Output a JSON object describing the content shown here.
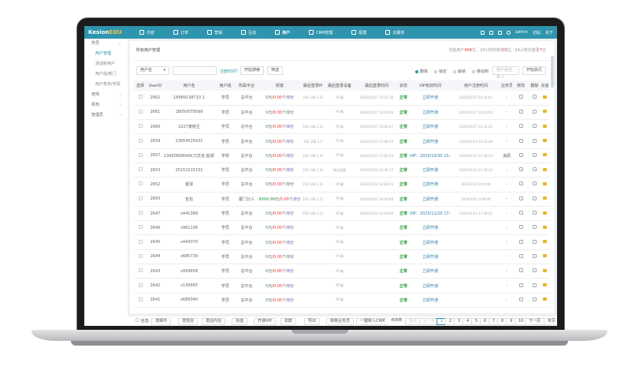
{
  "app": {
    "logo_a": "Kesion",
    "logo_b": "EDU",
    "user": "admin",
    "links": [
      "切站",
      "关于"
    ]
  },
  "nav": [
    {
      "label": "内容"
    },
    {
      "label": "订单"
    },
    {
      "label": "营销"
    },
    {
      "label": "互动"
    },
    {
      "label": "用户",
      "active": true
    },
    {
      "label": "CRM管理"
    },
    {
      "label": "配置"
    },
    {
      "label": "云服务"
    }
  ],
  "sidebar": {
    "groups": [
      {
        "label": "学员",
        "open": true,
        "items": [
          "用户管理",
          "添加新用户",
          "用户组/部门",
          "用户表单/字段"
        ]
      },
      {
        "label": "老师"
      },
      {
        "label": "机构"
      },
      {
        "label": "管理员"
      }
    ]
  },
  "page": {
    "title": "所有用户管理",
    "stats_a": "当前用户",
    "stats_total": "408",
    "stats_b": "位，24小时内新增",
    "stats_new": "0",
    "stats_c": "位，24小时内登录",
    "stats_login": "7",
    "stats_d": "位"
  },
  "filter": {
    "field": "用户名",
    "search_value": "",
    "reg_time": "注册时间？",
    "search": "开始搜索",
    "screen": "筛选",
    "actions": [
      "删除",
      "锁定",
      "解锁",
      "移动到"
    ],
    "selected_action": "删除",
    "group_select": "用户组选择",
    "execute": "开始执行"
  },
  "table": {
    "headers": [
      "选择",
      "UserID",
      "用户名",
      "用户组",
      "所属平台",
      "财富",
      "最后登录IP",
      "最后登录设备",
      "最后登录时间",
      "状态",
      "VIP有效时间",
      "用户注册时间",
      "业务员",
      "修改",
      "删除",
      "充值"
    ],
    "rows": [
      [
        "2662",
        "18989138710 1",
        "学员",
        "总平台",
        "0",
        "0.00",
        "0",
        "192.168.1.235",
        "PC端",
        "2020/10/27 10:41:35",
        "正常",
        "立即开通",
        "2020/10/27 10:41:01",
        "-"
      ],
      [
        "2661",
        "18050078599",
        "学员",
        "总平台",
        "0",
        "0.00",
        "0",
        "",
        "PC端",
        "2020/10/27 10:26:00",
        "正常",
        "立即开通",
        "2020/10/27 10:26:00",
        "-"
      ],
      [
        "2660",
        "1027黄晓生",
        "学员",
        "总平台",
        "0",
        "0.00",
        "0",
        "192.168.1.119",
        "PC端",
        "2020/10/27 10:44:27",
        "正常",
        "立即开通",
        "2020/10/27 10:12:51",
        "-"
      ],
      [
        "2659",
        "13654525631",
        "学员",
        "总平台",
        "0",
        "0.00",
        "0",
        "192.168.1.2",
        "PC端",
        "2020/10/24 17:06:35",
        "正常",
        "立即开通",
        "2020/10/24 16:22:49",
        "-"
      ],
      [
        "2657",
        "13400608049(江苏省,盐城市)",
        "学校",
        "总平台",
        "0",
        "0.00",
        "0",
        "192.168.1.196",
        "PC端",
        "2020/10/23 17:05:34",
        "正常",
        "VIP：2020/10/30 15:46:23",
        "2020/10/23 15:46:23",
        "海源"
      ],
      [
        "2653",
        "15151515151",
        "学员",
        "总平台",
        "0",
        "0.00",
        "0",
        "192.168.1.196",
        "移动设备",
        "2020/10/24 10:49:17",
        "正常",
        "立即开通",
        "2020/10/23 15:30:33",
        "-"
      ],
      [
        "2652",
        "金球",
        "学员",
        "总平台",
        "0",
        "0.00",
        "0",
        "192.168.1.196",
        "PC端",
        "2020/10/22 16:08:54",
        "正常",
        "立即开通",
        "2019/10/1 0:00:00",
        "-"
      ],
      [
        "2650",
        "包包",
        "学员",
        "厦门分三",
        "9999.99",
        "0.00",
        "0",
        "192.168.1.119",
        "PC端",
        "2020/10/22 16:20:09",
        "正常",
        "立即开通",
        "2019/10/1 0:00:00",
        "-"
      ],
      [
        "2647",
        "v441389",
        "学员",
        "总平台",
        "0",
        "0.00",
        "0",
        "192.168.1.119",
        "PC端",
        "2020/10/24 10:09:00",
        "正常",
        "VIP：2020/11/20 17:48:41",
        "2020/10/21 17:48:41",
        "-"
      ],
      [
        "2646",
        "v961106",
        "学员",
        "总平台",
        "0",
        "0.00",
        "0",
        "",
        "PC端",
        "",
        "正常",
        "立即开通",
        "",
        "-"
      ],
      [
        "2645",
        "v443070",
        "学员",
        "总平台",
        "0",
        "0.00",
        "0",
        "",
        "PC端",
        "",
        "正常",
        "立即开通",
        "",
        "-"
      ],
      [
        "2644",
        "v685739",
        "学员",
        "总平台",
        "0",
        "0.00",
        "0",
        "",
        "PC端",
        "",
        "正常",
        "立即开通",
        "",
        "-"
      ],
      [
        "2643",
        "v959658",
        "学员",
        "总平台",
        "0",
        "0.00",
        "0",
        "",
        "PC端",
        "",
        "正常",
        "立即开通",
        "",
        "-"
      ],
      [
        "2642",
        "v130665",
        "学员",
        "总平台",
        "0",
        "0.00",
        "0",
        "",
        "PC端",
        "",
        "正常",
        "立即开通",
        "",
        "-"
      ],
      [
        "2641",
        "v689340",
        "学员",
        "总平台",
        "0",
        "0.00",
        "0",
        "",
        "PC端",
        "",
        "正常",
        "立即开通",
        "",
        "-"
      ]
    ],
    "units": {
      "yuan": "元/",
      "ge": "个/",
      "fen": "分"
    }
  },
  "footer": {
    "select_all": "全选",
    "buttons": [
      "发邮件",
      "发短信",
      "发站内信",
      "充值",
      "开通VIP",
      "扣款",
      "导出",
      "转移业务员",
      "一键转入CRM"
    ],
    "total": "408条",
    "first": "首页",
    "prev": "上一页",
    "pages": [
      "1",
      "2",
      "3",
      "4",
      "5",
      "6",
      "7",
      "8",
      "9",
      "10"
    ],
    "current_page": "1",
    "next": "下一页",
    "last": "末页"
  },
  "colors": {
    "brand": "#2f94ad",
    "ok": "#2a9d3a",
    "red": "#e33"
  }
}
